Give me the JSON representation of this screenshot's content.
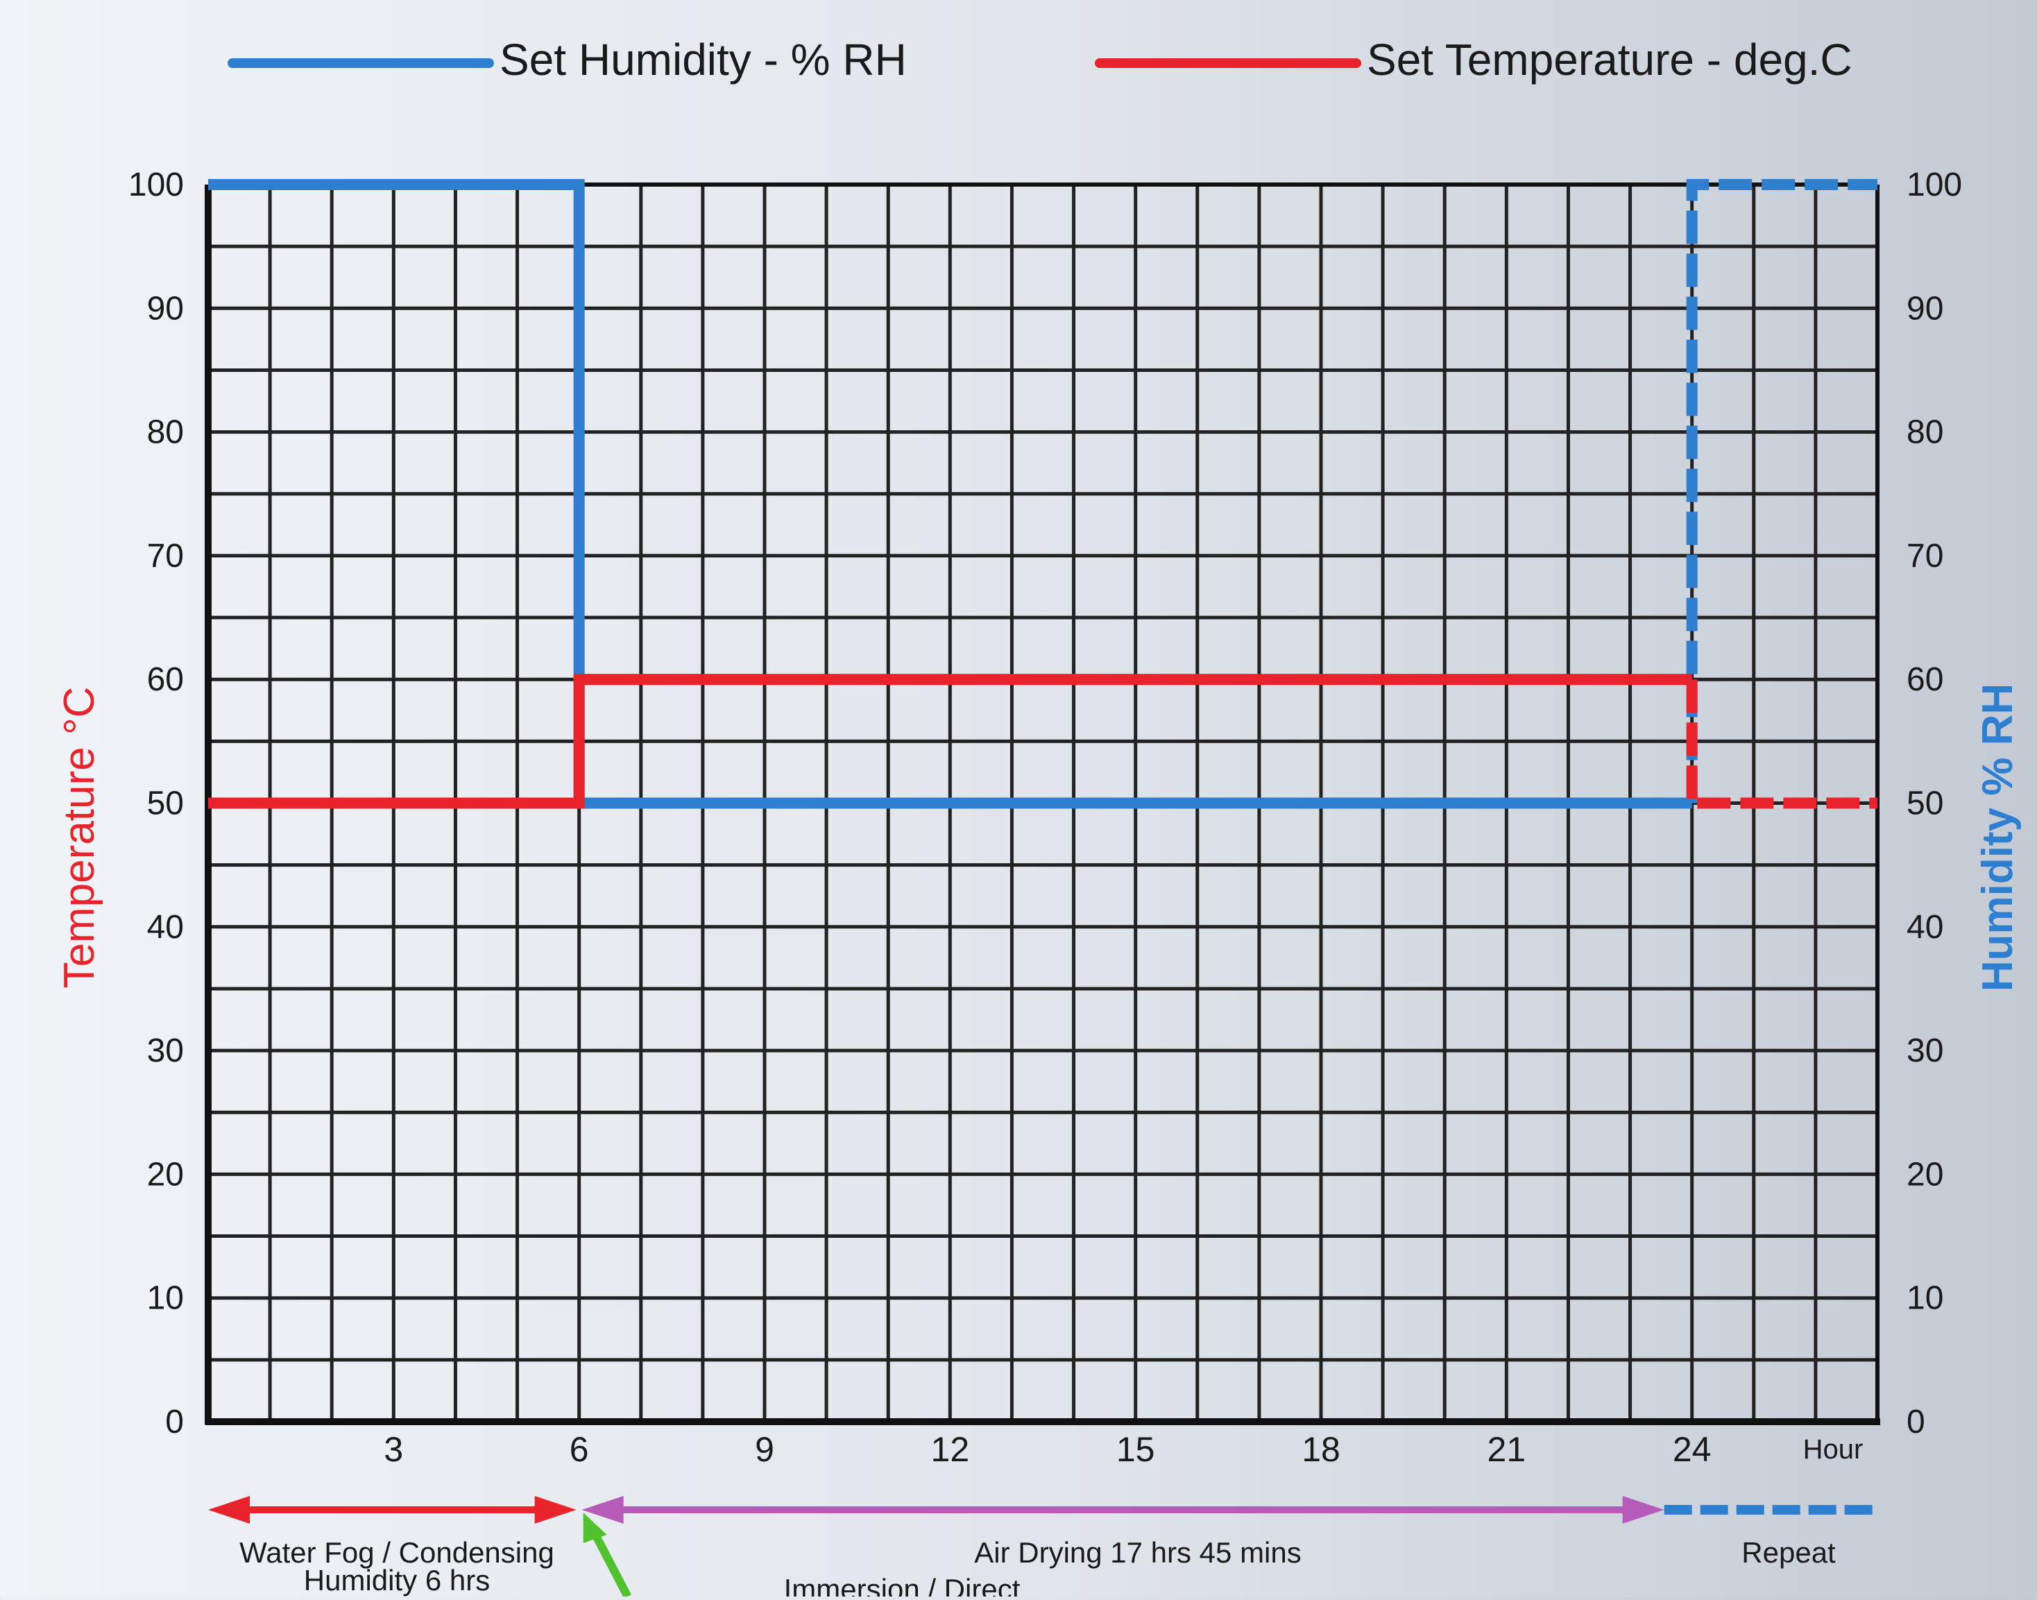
{
  "legend": {
    "humidity_label": "Set Humidity - % RH",
    "temperature_label": "Set Temperature - deg.C"
  },
  "axes": {
    "left_label": "Temperature °C",
    "right_label": "Humidity % RH",
    "x_unit_label": "Hour"
  },
  "phases": {
    "fog_label_line1": "Water Fog / Condensing",
    "fog_label_line2": "Humidity 6 hrs",
    "drying_label": "Air Drying 17 hrs 45 mins",
    "repeat_label": "Repeat",
    "cutoff_label": "Immersion / Direct"
  },
  "colors": {
    "humidity": "#2f7fd0",
    "temperature": "#e8232b",
    "grid": "#222222",
    "phase_fog": "#e8232b",
    "phase_drying": "#b65bb8",
    "phase_repeat": "#2f7fd0",
    "phase_pointer": "#52c12e"
  },
  "chart_data": {
    "type": "line",
    "x_label": "Hour",
    "xlim": [
      0,
      27
    ],
    "x_ticks": [
      3,
      6,
      9,
      12,
      15,
      18,
      21,
      24
    ],
    "ylim": [
      0,
      100
    ],
    "y_ticks": [
      0,
      10,
      20,
      30,
      40,
      50,
      60,
      70,
      80,
      90,
      100
    ],
    "y_label_left": "Temperature °C",
    "y_label_right": "Humidity % RH",
    "grid": true,
    "legend_position": "top",
    "series": [
      {
        "name": "Set Humidity - % RH",
        "axis": "right",
        "step": true,
        "x": [
          0,
          6,
          6,
          24
        ],
        "y": [
          100,
          100,
          50,
          50
        ],
        "repeat_dashed": {
          "x": [
            24,
            24,
            27
          ],
          "y": [
            50,
            100,
            100
          ]
        }
      },
      {
        "name": "Set Temperature - deg.C",
        "axis": "left",
        "step": true,
        "x": [
          0,
          6,
          6,
          24
        ],
        "y": [
          50,
          50,
          60,
          60
        ],
        "repeat_dashed": {
          "x": [
            24,
            24,
            27
          ],
          "y": [
            60,
            50,
            50
          ]
        }
      }
    ],
    "phases": [
      {
        "label": "Water Fog / Condensing Humidity 6 hrs",
        "start": 0,
        "end": 6
      },
      {
        "label": "Air Drying 17 hrs 45 mins",
        "start": 6,
        "end": 24
      },
      {
        "label": "Repeat",
        "start": 24,
        "end": 27
      }
    ]
  }
}
